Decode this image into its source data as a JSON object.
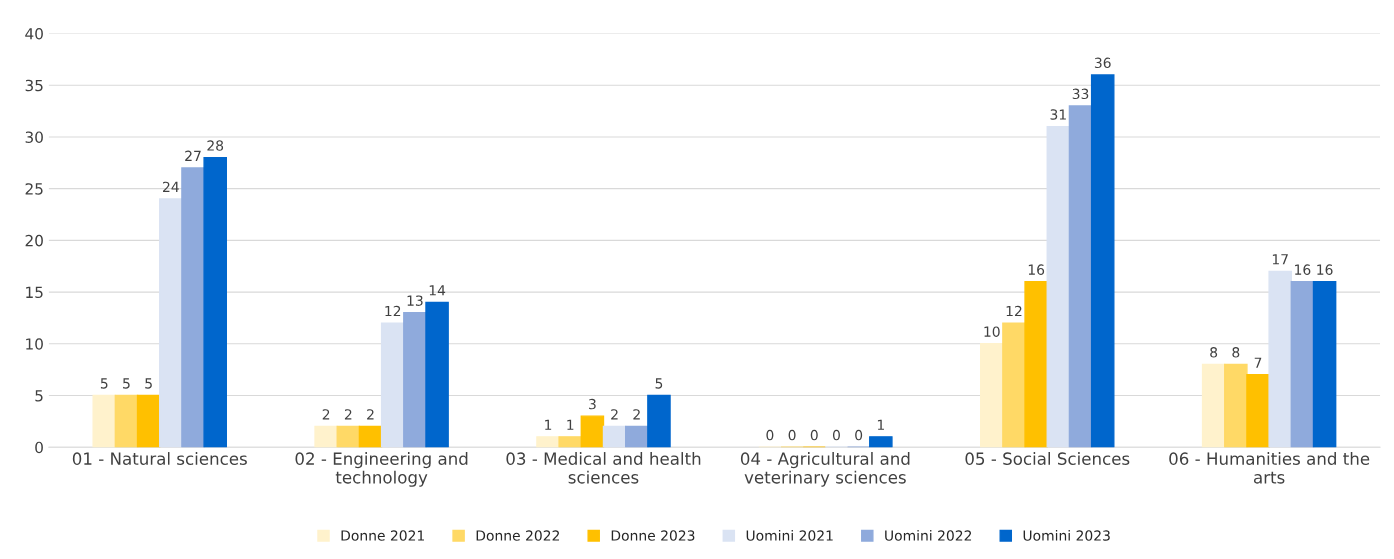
{
  "chart_data": {
    "type": "bar",
    "categories": [
      "01 - Natural sciences",
      "02 - Engineering and\ntechnology",
      "03 - Medical and health\nsciences",
      "04 - Agricultural and\nveterinary sciences",
      "05 - Social Sciences",
      "06 - Humanities and the\narts"
    ],
    "series": [
      {
        "name": "Donne 2021",
        "color": "#fff2cc",
        "values": [
          5,
          2,
          1,
          0,
          10,
          8
        ]
      },
      {
        "name": "Donne 2022",
        "color": "#ffd966",
        "values": [
          5,
          2,
          1,
          0,
          12,
          8
        ]
      },
      {
        "name": "Donne 2023",
        "color": "#ffc000",
        "values": [
          5,
          2,
          3,
          0,
          16,
          7
        ]
      },
      {
        "name": "Uomini 2021",
        "color": "#dae3f3",
        "values": [
          24,
          12,
          2,
          0,
          31,
          17
        ]
      },
      {
        "name": "Uomini 2022",
        "color": "#8faadc",
        "values": [
          27,
          13,
          2,
          0,
          33,
          16
        ]
      },
      {
        "name": "Uomini 2023",
        "color": "#0066cc",
        "values": [
          28,
          14,
          5,
          1,
          36,
          16
        ]
      }
    ],
    "ylim": [
      0,
      40
    ],
    "yticks": [
      0,
      5,
      10,
      15,
      20,
      25,
      30,
      35,
      40
    ],
    "grid": "y",
    "legend": "bottom",
    "data_labels": true
  }
}
